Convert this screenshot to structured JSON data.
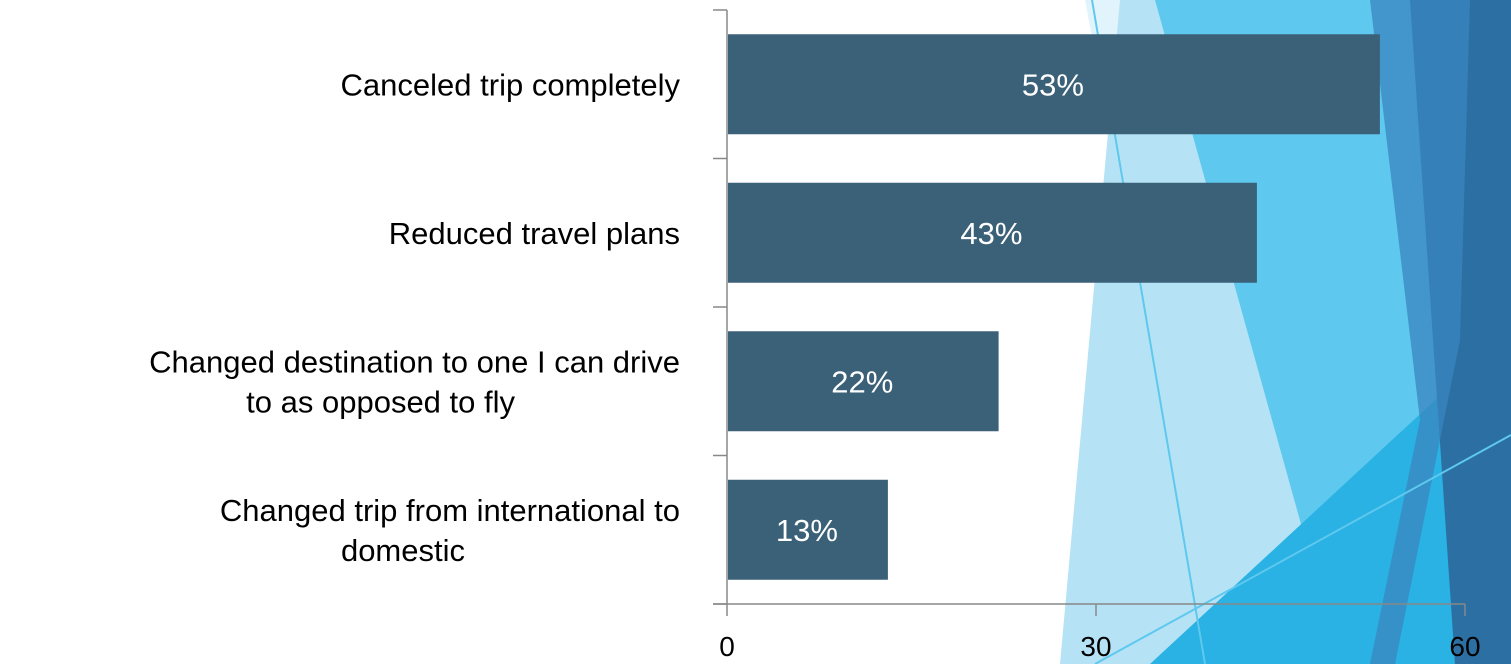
{
  "colors": {
    "bar": "#3b6178",
    "axis": "#888888",
    "bar_label": "#ffffff",
    "decoration_light": "#d6effa",
    "decoration_mid": "#5ec8ee",
    "decoration_dark": "#2b6fa3"
  },
  "chart_data": {
    "type": "bar",
    "orientation": "horizontal",
    "categories": [
      "Canceled trip completely",
      "Reduced travel plans",
      "Changed destination to one I can drive to as opposed to fly",
      "Changed trip from international to domestic"
    ],
    "category_lines": [
      [
        "Canceled trip completely"
      ],
      [
        "Reduced travel plans"
      ],
      [
        "Changed destination to one I can drive",
        "to as opposed to fly"
      ],
      [
        "Changed trip from international to",
        "domestic"
      ]
    ],
    "values": [
      53,
      43,
      22,
      13
    ],
    "data_labels": [
      "53%",
      "43%",
      "22%",
      "13%"
    ],
    "xlim": [
      0,
      60
    ],
    "x_ticks": [
      0,
      30,
      60
    ],
    "x_tick_labels": [
      "0",
      "30",
      "60"
    ],
    "title": "",
    "xlabel": "",
    "ylabel": "",
    "grid": false,
    "legend": false
  }
}
